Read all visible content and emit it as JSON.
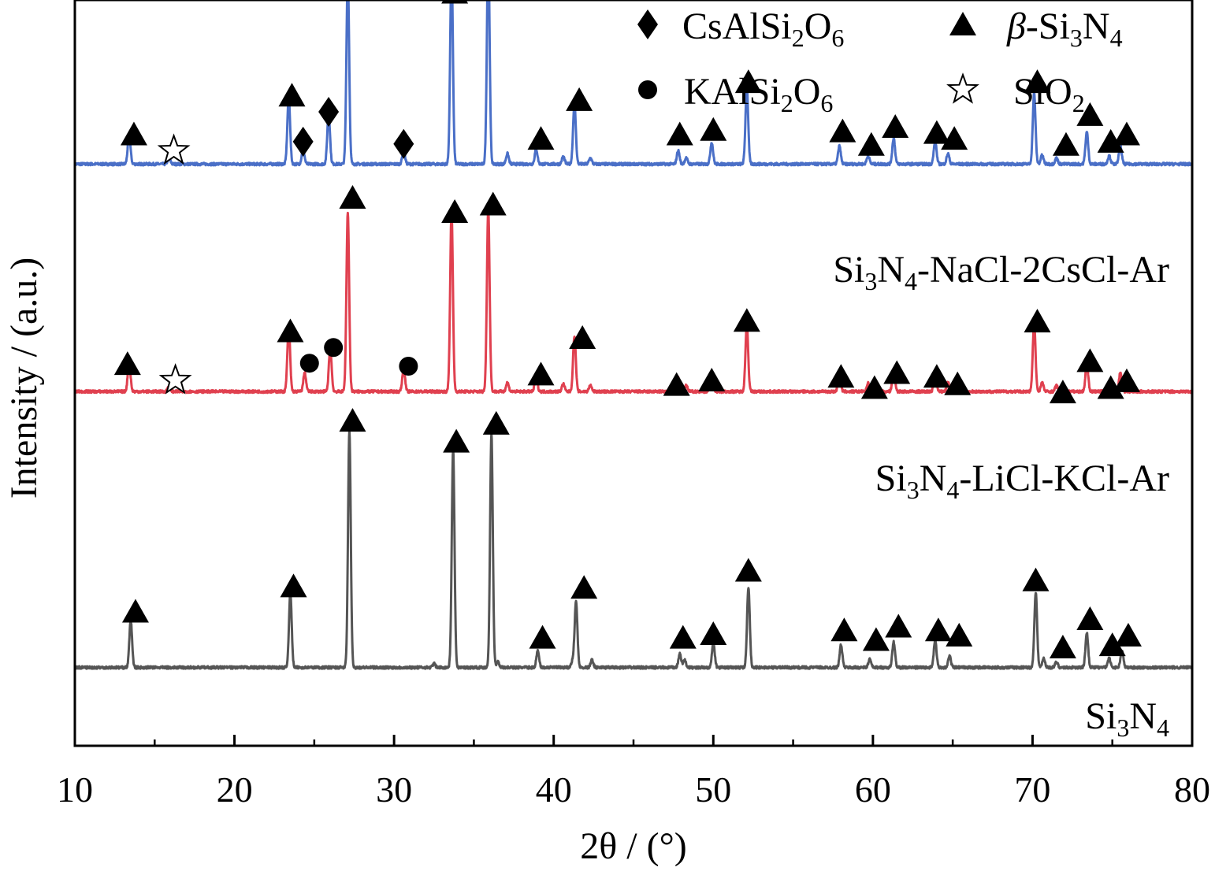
{
  "chart_data": {
    "type": "line",
    "title": "",
    "xlabel": "2θ / (°)",
    "ylabel": "Intensity / (a.u.)",
    "xlim": [
      10,
      80
    ],
    "x_ticks": [
      10,
      20,
      30,
      40,
      50,
      60,
      70,
      80
    ],
    "grid": false,
    "y_tick_labels": false,
    "legend_placement": "top-right",
    "legend": [
      {
        "marker": "diamond",
        "name": "CsAlSi₂O₆"
      },
      {
        "marker": "triangle",
        "name": "β-Si₃N₄"
      },
      {
        "marker": "circle",
        "name": "KAlSi₂O₆"
      },
      {
        "marker": "star",
        "name": "SiO₂"
      }
    ],
    "series": [
      {
        "name": "Si₃N₄-NaCl-2CsCl-Ar",
        "color": "#4a6fc7",
        "offset": 0.78,
        "peaks": [
          {
            "x": 13.4,
            "y": 0.04
          },
          {
            "x": 15.9,
            "y": 0.008
          },
          {
            "x": 23.4,
            "y": 0.091
          },
          {
            "x": 24.3,
            "y": 0.02
          },
          {
            "x": 25.9,
            "y": 0.068
          },
          {
            "x": 27.1,
            "y": 0.253
          },
          {
            "x": 30.6,
            "y": 0.018
          },
          {
            "x": 33.6,
            "y": 0.263
          },
          {
            "x": 35.9,
            "y": 0.287
          },
          {
            "x": 37.1,
            "y": 0.014
          },
          {
            "x": 38.9,
            "y": 0.02
          },
          {
            "x": 40.6,
            "y": 0.01
          },
          {
            "x": 41.3,
            "y": 0.082
          },
          {
            "x": 42.3,
            "y": 0.008
          },
          {
            "x": 47.8,
            "y": 0.018
          },
          {
            "x": 48.3,
            "y": 0.008
          },
          {
            "x": 49.9,
            "y": 0.029
          },
          {
            "x": 52.1,
            "y": 0.103
          },
          {
            "x": 57.9,
            "y": 0.024
          },
          {
            "x": 59.7,
            "y": 0.011
          },
          {
            "x": 61.3,
            "y": 0.035
          },
          {
            "x": 63.9,
            "y": 0.031
          },
          {
            "x": 64.7,
            "y": 0.014
          },
          {
            "x": 70.1,
            "y": 0.095
          },
          {
            "x": 70.6,
            "y": 0.012
          },
          {
            "x": 71.5,
            "y": 0.008
          },
          {
            "x": 73.4,
            "y": 0.043
          },
          {
            "x": 74.8,
            "y": 0.011
          },
          {
            "x": 75.5,
            "y": 0.025
          }
        ]
      },
      {
        "name": "Si₃N₄-LiCl-KCl-Ar",
        "color": "#e0404f",
        "offset": 0.475,
        "peaks": [
          {
            "x": 13.4,
            "y": 0.04
          },
          {
            "x": 15.9,
            "y": 0.008
          },
          {
            "x": 23.4,
            "y": 0.088
          },
          {
            "x": 24.4,
            "y": 0.025
          },
          {
            "x": 26.0,
            "y": 0.059
          },
          {
            "x": 27.1,
            "y": 0.24
          },
          {
            "x": 30.6,
            "y": 0.031
          },
          {
            "x": 33.6,
            "y": 0.242
          },
          {
            "x": 35.9,
            "y": 0.245
          },
          {
            "x": 37.1,
            "y": 0.012
          },
          {
            "x": 38.9,
            "y": 0.02
          },
          {
            "x": 40.6,
            "y": 0.01
          },
          {
            "x": 41.3,
            "y": 0.075
          },
          {
            "x": 42.3,
            "y": 0.008
          },
          {
            "x": 47.8,
            "y": 0.018
          },
          {
            "x": 48.3,
            "y": 0.008
          },
          {
            "x": 49.9,
            "y": 0.027
          },
          {
            "x": 52.1,
            "y": 0.09
          },
          {
            "x": 57.9,
            "y": 0.023
          },
          {
            "x": 59.7,
            "y": 0.011
          },
          {
            "x": 61.3,
            "y": 0.03
          },
          {
            "x": 63.9,
            "y": 0.028
          },
          {
            "x": 64.7,
            "y": 0.012
          },
          {
            "x": 70.1,
            "y": 0.092
          },
          {
            "x": 70.6,
            "y": 0.012
          },
          {
            "x": 71.5,
            "y": 0.008
          },
          {
            "x": 73.4,
            "y": 0.038
          },
          {
            "x": 74.8,
            "y": 0.011
          },
          {
            "x": 75.5,
            "y": 0.025
          }
        ]
      },
      {
        "name": "Si₃N₄",
        "color": "#555555",
        "offset": 0.105,
        "peaks": [
          {
            "x": 13.5,
            "y": 0.063
          },
          {
            "x": 23.5,
            "y": 0.1
          },
          {
            "x": 27.2,
            "y": 0.318
          },
          {
            "x": 32.5,
            "y": 0.005
          },
          {
            "x": 33.7,
            "y": 0.292
          },
          {
            "x": 36.1,
            "y": 0.313
          },
          {
            "x": 36.5,
            "y": 0.008
          },
          {
            "x": 39.0,
            "y": 0.022
          },
          {
            "x": 41.2,
            "y": 0.01
          },
          {
            "x": 41.4,
            "y": 0.088
          },
          {
            "x": 42.4,
            "y": 0.01
          },
          {
            "x": 47.9,
            "y": 0.018
          },
          {
            "x": 48.2,
            "y": 0.01
          },
          {
            "x": 50.0,
            "y": 0.034
          },
          {
            "x": 52.2,
            "y": 0.108
          },
          {
            "x": 58.0,
            "y": 0.03
          },
          {
            "x": 59.8,
            "y": 0.011
          },
          {
            "x": 61.3,
            "y": 0.034
          },
          {
            "x": 63.9,
            "y": 0.036
          },
          {
            "x": 64.8,
            "y": 0.015
          },
          {
            "x": 70.2,
            "y": 0.101
          },
          {
            "x": 70.7,
            "y": 0.012
          },
          {
            "x": 71.5,
            "y": 0.007
          },
          {
            "x": 73.4,
            "y": 0.046
          },
          {
            "x": 74.8,
            "y": 0.012
          },
          {
            "x": 75.6,
            "y": 0.023
          }
        ]
      }
    ],
    "markers": [
      {
        "series": 0,
        "shape": "triangle",
        "x": 13.7,
        "y": 0.82
      },
      {
        "series": 0,
        "shape": "star",
        "x": 16.2,
        "y": 0.798
      },
      {
        "series": 0,
        "shape": "triangle",
        "x": 23.6,
        "y": 0.872
      },
      {
        "series": 0,
        "shape": "diamond",
        "x": 24.3,
        "y": 0.81
      },
      {
        "series": 0,
        "shape": "diamond",
        "x": 25.9,
        "y": 0.85
      },
      {
        "series": 0,
        "shape": "triangle",
        "x": 27.3,
        "y": 1.04
      },
      {
        "series": 0,
        "shape": "diamond",
        "x": 30.6,
        "y": 0.807
      },
      {
        "series": 0,
        "shape": "triangle",
        "x": 33.8,
        "y": 1.01
      },
      {
        "series": 0,
        "shape": "triangle",
        "x": 36.3,
        "y": 1.05
      },
      {
        "series": 0,
        "shape": "triangle",
        "x": 39.2,
        "y": 0.814
      },
      {
        "series": 0,
        "shape": "triangle",
        "x": 41.6,
        "y": 0.866
      },
      {
        "series": 0,
        "shape": "triangle",
        "x": 47.9,
        "y": 0.82
      },
      {
        "series": 0,
        "shape": "triangle",
        "x": 50.0,
        "y": 0.826
      },
      {
        "series": 0,
        "shape": "triangle",
        "x": 52.2,
        "y": 0.89
      },
      {
        "series": 0,
        "shape": "triangle",
        "x": 58.1,
        "y": 0.824
      },
      {
        "series": 0,
        "shape": "triangle",
        "x": 59.9,
        "y": 0.806
      },
      {
        "series": 0,
        "shape": "triangle",
        "x": 61.4,
        "y": 0.83
      },
      {
        "series": 0,
        "shape": "triangle",
        "x": 64.0,
        "y": 0.822
      },
      {
        "series": 0,
        "shape": "triangle",
        "x": 65.1,
        "y": 0.814
      },
      {
        "series": 0,
        "shape": "triangle",
        "x": 70.3,
        "y": 0.89
      },
      {
        "series": 0,
        "shape": "triangle",
        "x": 72.1,
        "y": 0.806
      },
      {
        "series": 0,
        "shape": "triangle",
        "x": 73.6,
        "y": 0.846
      },
      {
        "series": 0,
        "shape": "triangle",
        "x": 74.9,
        "y": 0.81
      },
      {
        "series": 0,
        "shape": "triangle",
        "x": 75.9,
        "y": 0.82
      },
      {
        "series": 1,
        "shape": "triangle",
        "x": 13.3,
        "y": 0.512
      },
      {
        "series": 1,
        "shape": "star",
        "x": 16.3,
        "y": 0.49
      },
      {
        "series": 1,
        "shape": "triangle",
        "x": 23.5,
        "y": 0.556
      },
      {
        "series": 1,
        "shape": "circle",
        "x": 24.7,
        "y": 0.513
      },
      {
        "series": 1,
        "shape": "circle",
        "x": 26.2,
        "y": 0.534
      },
      {
        "series": 1,
        "shape": "triangle",
        "x": 27.4,
        "y": 0.735
      },
      {
        "series": 1,
        "shape": "circle",
        "x": 30.9,
        "y": 0.509
      },
      {
        "series": 1,
        "shape": "triangle",
        "x": 33.8,
        "y": 0.716
      },
      {
        "series": 1,
        "shape": "triangle",
        "x": 36.2,
        "y": 0.726
      },
      {
        "series": 1,
        "shape": "triangle",
        "x": 39.2,
        "y": 0.498
      },
      {
        "series": 1,
        "shape": "triangle",
        "x": 41.8,
        "y": 0.547
      },
      {
        "series": 1,
        "shape": "triangle",
        "x": 47.7,
        "y": 0.484
      },
      {
        "series": 1,
        "shape": "triangle",
        "x": 49.9,
        "y": 0.49
      },
      {
        "series": 1,
        "shape": "triangle",
        "x": 52.1,
        "y": 0.57
      },
      {
        "series": 1,
        "shape": "triangle",
        "x": 58.0,
        "y": 0.495
      },
      {
        "series": 1,
        "shape": "triangle",
        "x": 60.1,
        "y": 0.48
      },
      {
        "series": 1,
        "shape": "triangle",
        "x": 61.5,
        "y": 0.5
      },
      {
        "series": 1,
        "shape": "triangle",
        "x": 64.0,
        "y": 0.495
      },
      {
        "series": 1,
        "shape": "triangle",
        "x": 65.3,
        "y": 0.485
      },
      {
        "series": 1,
        "shape": "triangle",
        "x": 70.3,
        "y": 0.569
      },
      {
        "series": 1,
        "shape": "triangle",
        "x": 71.9,
        "y": 0.474
      },
      {
        "series": 1,
        "shape": "triangle",
        "x": 73.6,
        "y": 0.516
      },
      {
        "series": 1,
        "shape": "triangle",
        "x": 74.9,
        "y": 0.48
      },
      {
        "series": 1,
        "shape": "triangle",
        "x": 75.9,
        "y": 0.489
      },
      {
        "series": 2,
        "shape": "triangle",
        "x": 13.8,
        "y": 0.18
      },
      {
        "series": 2,
        "shape": "triangle",
        "x": 23.7,
        "y": 0.214
      },
      {
        "series": 2,
        "shape": "triangle",
        "x": 27.4,
        "y": 0.436
      },
      {
        "series": 2,
        "shape": "triangle",
        "x": 33.9,
        "y": 0.408
      },
      {
        "series": 2,
        "shape": "triangle",
        "x": 36.4,
        "y": 0.432
      },
      {
        "series": 2,
        "shape": "triangle",
        "x": 39.3,
        "y": 0.145
      },
      {
        "series": 2,
        "shape": "triangle",
        "x": 41.9,
        "y": 0.212
      },
      {
        "series": 2,
        "shape": "triangle",
        "x": 48.1,
        "y": 0.145
      },
      {
        "series": 2,
        "shape": "triangle",
        "x": 50.0,
        "y": 0.15
      },
      {
        "series": 2,
        "shape": "triangle",
        "x": 52.2,
        "y": 0.235
      },
      {
        "series": 2,
        "shape": "triangle",
        "x": 58.2,
        "y": 0.155
      },
      {
        "series": 2,
        "shape": "triangle",
        "x": 60.2,
        "y": 0.142
      },
      {
        "series": 2,
        "shape": "triangle",
        "x": 61.6,
        "y": 0.16
      },
      {
        "series": 2,
        "shape": "triangle",
        "x": 64.1,
        "y": 0.155
      },
      {
        "series": 2,
        "shape": "triangle",
        "x": 65.4,
        "y": 0.148
      },
      {
        "series": 2,
        "shape": "triangle",
        "x": 70.2,
        "y": 0.222
      },
      {
        "series": 2,
        "shape": "triangle",
        "x": 71.9,
        "y": 0.132
      },
      {
        "series": 2,
        "shape": "triangle",
        "x": 73.6,
        "y": 0.17
      },
      {
        "series": 2,
        "shape": "triangle",
        "x": 75.0,
        "y": 0.135
      },
      {
        "series": 2,
        "shape": "triangle",
        "x": 76.0,
        "y": 0.148
      }
    ]
  }
}
